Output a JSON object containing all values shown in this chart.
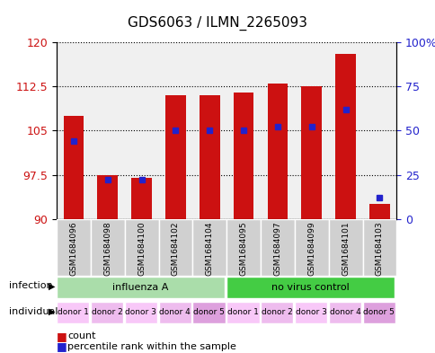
{
  "title": "GDS6063 / ILMN_2265093",
  "samples": [
    "GSM1684096",
    "GSM1684098",
    "GSM1684100",
    "GSM1684102",
    "GSM1684104",
    "GSM1684095",
    "GSM1684097",
    "GSM1684099",
    "GSM1684101",
    "GSM1684103"
  ],
  "count_values": [
    107.5,
    97.5,
    97.0,
    111.0,
    111.0,
    111.5,
    113.0,
    112.5,
    118.0,
    92.5
  ],
  "percentile_values": [
    44,
    22,
    22,
    50,
    50,
    50,
    52,
    52,
    62,
    12
  ],
  "ymin": 90,
  "ymax": 120,
  "yticks": [
    90,
    97.5,
    105,
    112.5,
    120
  ],
  "yticklabels": [
    "90",
    "97.5",
    "105",
    "112.5",
    "120"
  ],
  "right_yticks": [
    0,
    25,
    50,
    75,
    100
  ],
  "right_yticklabels": [
    "0",
    "25",
    "50",
    "75",
    "100%"
  ],
  "bar_color": "#cc1111",
  "percentile_color": "#2222cc",
  "bar_width": 0.6,
  "infection_groups": [
    {
      "label": "influenza A",
      "start": 0,
      "end": 5,
      "color": "#aaddaa"
    },
    {
      "label": "no virus control",
      "start": 5,
      "end": 10,
      "color": "#44cc44"
    }
  ],
  "individual_labels": [
    "donor 1",
    "donor 2",
    "donor 3",
    "donor 4",
    "donor 5",
    "donor 1",
    "donor 2",
    "donor 3",
    "donor 4",
    "donor 5"
  ],
  "individual_colors": [
    "#f8c8f8",
    "#eebcee",
    "#f8c8f8",
    "#eebcee",
    "#dda0dd",
    "#f8c8f8",
    "#eebcee",
    "#f8c8f8",
    "#eebcee",
    "#dda0dd"
  ],
  "bg_color": "#ffffff",
  "plot_bg_color": "#f0f0f0",
  "grid_color": "#000000",
  "left_label_color": "#cc1111",
  "right_label_color": "#2222cc",
  "infection_label": "infection",
  "individual_label": "individual"
}
